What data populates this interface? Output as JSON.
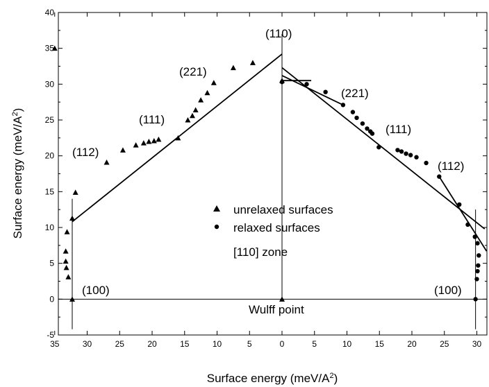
{
  "chart_data": {
    "type": "scatter",
    "xlabel": "Surface energy (meV/A",
    "xlabel_sup": "2",
    "xlabel_end": ")",
    "ylabel": "Surface energy (meV/A",
    "ylabel_sup": "2",
    "ylabel_end": ")",
    "ylim": [
      -5,
      40
    ],
    "y_ticks": [
      -5,
      0,
      5,
      10,
      15,
      20,
      25,
      30,
      35,
      40
    ],
    "x_ticks_left": [
      35,
      30,
      25,
      20,
      15,
      10,
      5,
      0
    ],
    "x_ticks_right": [
      5,
      10,
      15,
      20,
      25,
      30
    ],
    "grid": false,
    "legend_position": "center",
    "legend": [
      {
        "marker": "triangle",
        "label": "unrelaxed surfaces"
      },
      {
        "marker": "circle",
        "label": "relaxed surfaces"
      },
      {
        "marker": "none",
        "label": "[110] zone"
      }
    ],
    "series": [
      {
        "name": "unrelaxed surfaces",
        "side": "left",
        "marker": "triangle",
        "points": [
          [
            35.0,
            35.0
          ],
          [
            0.0,
            30.5
          ],
          [
            4.5,
            33.0
          ],
          [
            7.5,
            32.3
          ],
          [
            10.5,
            30.2
          ],
          [
            11.5,
            28.8
          ],
          [
            12.5,
            27.8
          ],
          [
            13.3,
            26.4
          ],
          [
            13.8,
            25.6
          ],
          [
            14.5,
            25.0
          ],
          [
            16.0,
            22.5
          ],
          [
            19.0,
            22.3
          ],
          [
            19.7,
            22.1
          ],
          [
            20.5,
            22.0
          ],
          [
            21.3,
            21.8
          ],
          [
            22.5,
            21.5
          ],
          [
            24.5,
            20.8
          ],
          [
            27.0,
            19.1
          ],
          [
            31.8,
            14.9
          ],
          [
            32.3,
            11.3
          ],
          [
            33.1,
            9.4
          ],
          [
            33.3,
            6.7
          ],
          [
            33.3,
            5.3
          ],
          [
            33.2,
            4.4
          ],
          [
            32.9,
            3.1
          ],
          [
            32.3,
            0.0
          ],
          [
            0.0,
            0.0
          ]
        ]
      },
      {
        "name": "relaxed surfaces",
        "side": "right",
        "marker": "circle",
        "points": [
          [
            0.0,
            30.3
          ],
          [
            3.8,
            30.0
          ],
          [
            6.7,
            28.9
          ],
          [
            9.4,
            27.1
          ],
          [
            10.9,
            26.1
          ],
          [
            11.5,
            25.3
          ],
          [
            12.4,
            24.5
          ],
          [
            13.1,
            23.8
          ],
          [
            13.6,
            23.4
          ],
          [
            13.9,
            23.1
          ],
          [
            14.9,
            21.2
          ],
          [
            17.8,
            20.8
          ],
          [
            18.4,
            20.6
          ],
          [
            19.1,
            20.3
          ],
          [
            19.8,
            20.1
          ],
          [
            20.7,
            19.8
          ],
          [
            22.2,
            19.0
          ],
          [
            24.2,
            17.1
          ],
          [
            27.3,
            13.2
          ],
          [
            28.6,
            10.4
          ],
          [
            29.7,
            8.7
          ],
          [
            30.1,
            7.8
          ],
          [
            30.3,
            6.1
          ],
          [
            30.2,
            4.7
          ],
          [
            30.1,
            3.9
          ],
          [
            30.0,
            2.8
          ],
          [
            29.8,
            0.0
          ]
        ]
      }
    ],
    "lines": [
      {
        "side": "left",
        "from": [
          32.3,
          10.8
        ],
        "to": [
          0.0,
          34.2
        ]
      },
      {
        "side": "right",
        "from": [
          0.0,
          32.3
        ],
        "to": [
          31.2,
          9.8
        ]
      },
      {
        "side": "right",
        "from": [
          0.0,
          31.2
        ],
        "to": [
          9.4,
          27.1
        ]
      },
      {
        "side": "right",
        "from": [
          0.0,
          30.5
        ],
        "to": [
          4.5,
          30.5
        ]
      },
      {
        "side": "right",
        "from": [
          24.2,
          17.1
        ],
        "to": [
          31.5,
          6.7
        ]
      }
    ],
    "annotations": [
      "(110)",
      "(221)",
      "(111)",
      "(112)",
      "(100)",
      "(221)",
      "(111)",
      "(112)",
      "(100)",
      "Wulff point"
    ]
  }
}
